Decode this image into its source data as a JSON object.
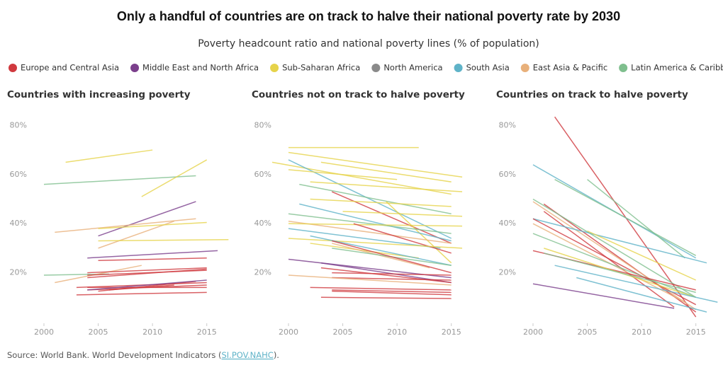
{
  "title": "Only a handful of countries are on track to halve their national poverty rate by 2030",
  "subtitle": "Poverty headcount ratio and national poverty lines (% of population)",
  "legend": [
    {
      "name": "Europe and Central Asia",
      "color": "#d0393e"
    },
    {
      "name": "Middle East and North Africa",
      "color": "#7b3f8c"
    },
    {
      "name": "Sub-Saharan Africa",
      "color": "#e6d34a"
    },
    {
      "name": "North America",
      "color": "#8a8a8a"
    },
    {
      "name": "South Asia",
      "color": "#5fb3c8"
    },
    {
      "name": "East Asia & Pacific",
      "color": "#e8b07a"
    },
    {
      "name": "Latin America & Caribbean",
      "color": "#7fbf8e"
    }
  ],
  "source": {
    "text": "Source: World Bank. World Development Indicators (",
    "link": "SI.POV.NAHC",
    "end": ")."
  },
  "chart_data": [
    {
      "type": "line",
      "title": "Countries with increasing poverty",
      "xlim": [
        1998.5,
        2017.5
      ],
      "ylim": [
        0,
        85
      ],
      "xticks": [
        2000,
        2005,
        2010,
        2015
      ],
      "yticks": [
        {
          "value": 20,
          "label": "20%"
        },
        {
          "value": 40,
          "label": "40%"
        },
        {
          "value": 60,
          "label": "60%"
        },
        {
          "value": 80,
          "label": "80%"
        }
      ],
      "grid": false,
      "series": [
        {
          "color": "#e6d34a",
          "x": [
            2002,
            2010
          ],
          "values": [
            65,
            70
          ]
        },
        {
          "color": "#7fbf8e",
          "x": [
            2000,
            2014
          ],
          "values": [
            56,
            59.5
          ]
        },
        {
          "color": "#e6d34a",
          "x": [
            2009,
            2015
          ],
          "values": [
            51,
            66
          ]
        },
        {
          "color": "#7b3f8c",
          "x": [
            2005,
            2014
          ],
          "values": [
            35,
            49
          ]
        },
        {
          "color": "#e8b07a",
          "x": [
            2001,
            2014
          ],
          "values": [
            36.5,
            42
          ]
        },
        {
          "color": "#e8b07a",
          "x": [
            2005,
            2012
          ],
          "values": [
            30,
            41
          ]
        },
        {
          "color": "#e6d34a",
          "x": [
            2005,
            2015
          ],
          "values": [
            38,
            40.5
          ]
        },
        {
          "color": "#e6d34a",
          "x": [
            2005,
            2017
          ],
          "values": [
            33,
            33.5
          ]
        },
        {
          "color": "#7b3f8c",
          "x": [
            2004,
            2016
          ],
          "values": [
            26,
            29
          ]
        },
        {
          "color": "#7fbf8e",
          "x": [
            2000,
            2006
          ],
          "values": [
            19,
            19.5
          ]
        },
        {
          "color": "#e8b07a",
          "x": [
            2001,
            2009
          ],
          "values": [
            16,
            23
          ]
        },
        {
          "color": "#d0393e",
          "x": [
            2005,
            2015
          ],
          "values": [
            25,
            26
          ]
        },
        {
          "color": "#d0393e",
          "x": [
            2004,
            2015
          ],
          "values": [
            20,
            22
          ]
        },
        {
          "color": "#d0393e",
          "x": [
            2004,
            2015
          ],
          "values": [
            19,
            21
          ]
        },
        {
          "color": "#d0393e",
          "x": [
            2004,
            2015
          ],
          "values": [
            18,
            21.5
          ]
        },
        {
          "color": "#d0393e",
          "x": [
            2003,
            2015
          ],
          "values": [
            14,
            16
          ]
        },
        {
          "color": "#d0393e",
          "x": [
            2004,
            2015
          ],
          "values": [
            13,
            15
          ]
        },
        {
          "color": "#d0393e",
          "x": [
            2005,
            2014
          ],
          "values": [
            12.5,
            16.5
          ]
        },
        {
          "color": "#d0393e",
          "x": [
            2003,
            2015
          ],
          "values": [
            11,
            12
          ]
        },
        {
          "color": "#d0393e",
          "x": [
            2004,
            2015
          ],
          "values": [
            14,
            14
          ]
        },
        {
          "color": "#d0393e",
          "x": [
            2006,
            2012
          ],
          "values": [
            13,
            15
          ]
        },
        {
          "color": "#7b3f8c",
          "x": [
            2004,
            2015
          ],
          "values": [
            13,
            17
          ]
        }
      ]
    },
    {
      "type": "line",
      "title": "Countries not on track to halve poverty",
      "xlim": [
        1998.5,
        2017.5
      ],
      "ylim": [
        0,
        85
      ],
      "xticks": [
        2000,
        2005,
        2010,
        2015
      ],
      "yticks": [
        {
          "value": 20,
          "label": "20%"
        },
        {
          "value": 40,
          "label": "40%"
        },
        {
          "value": 60,
          "label": "60%"
        },
        {
          "value": 80,
          "label": "80%"
        }
      ],
      "grid": false,
      "series": [
        {
          "color": "#e6d34a",
          "x": [
            2000,
            2012
          ],
          "values": [
            71,
            71
          ]
        },
        {
          "color": "#e6d34a",
          "x": [
            2000,
            2016
          ],
          "values": [
            69,
            59
          ]
        },
        {
          "color": "#e6d34a",
          "x": [
            1998.5,
            2015
          ],
          "values": [
            65,
            52
          ]
        },
        {
          "color": "#5fb3c8",
          "x": [
            2000,
            2015
          ],
          "values": [
            66,
            34
          ]
        },
        {
          "color": "#e6d34a",
          "x": [
            2003,
            2015
          ],
          "values": [
            65,
            57
          ]
        },
        {
          "color": "#e6d34a",
          "x": [
            2000,
            2010
          ],
          "values": [
            62,
            58
          ]
        },
        {
          "color": "#7fbf8e",
          "x": [
            2001,
            2015
          ],
          "values": [
            56,
            44
          ]
        },
        {
          "color": "#d0393e",
          "x": [
            2004,
            2015
          ],
          "values": [
            53,
            32
          ]
        },
        {
          "color": "#e6d34a",
          "x": [
            2002,
            2016
          ],
          "values": [
            57,
            53
          ]
        },
        {
          "color": "#e6d34a",
          "x": [
            2002,
            2015
          ],
          "values": [
            50,
            47
          ]
        },
        {
          "color": "#e6d34a",
          "x": [
            2009,
            2015
          ],
          "values": [
            49,
            24
          ]
        },
        {
          "color": "#5fb3c8",
          "x": [
            2001,
            2015
          ],
          "values": [
            48,
            33
          ]
        },
        {
          "color": "#e6d34a",
          "x": [
            2005,
            2016
          ],
          "values": [
            45,
            43
          ]
        },
        {
          "color": "#7fbf8e",
          "x": [
            2000,
            2015
          ],
          "values": [
            44,
            36
          ]
        },
        {
          "color": "#e8b07a",
          "x": [
            2000,
            2015
          ],
          "values": [
            41,
            32
          ]
        },
        {
          "color": "#e6d34a",
          "x": [
            2000,
            2016
          ],
          "values": [
            40,
            39
          ]
        },
        {
          "color": "#5fb3c8",
          "x": [
            2000,
            2014
          ],
          "values": [
            38,
            30
          ]
        },
        {
          "color": "#d0393e",
          "x": [
            2006,
            2015
          ],
          "values": [
            40,
            28
          ]
        },
        {
          "color": "#e6d34a",
          "x": [
            2000,
            2016
          ],
          "values": [
            34,
            30
          ]
        },
        {
          "color": "#e6d34a",
          "x": [
            2002,
            2012
          ],
          "values": [
            32,
            26
          ]
        },
        {
          "color": "#e8b07a",
          "x": [
            2004,
            2013
          ],
          "values": [
            32,
            22
          ]
        },
        {
          "color": "#5fb3c8",
          "x": [
            2002,
            2015
          ],
          "values": [
            35,
            23
          ]
        },
        {
          "color": "#7fbf8e",
          "x": [
            2004,
            2015
          ],
          "values": [
            30,
            23
          ]
        },
        {
          "color": "#d0393e",
          "x": [
            2004,
            2015
          ],
          "values": [
            33,
            20
          ]
        },
        {
          "color": "#7b3f8c",
          "x": [
            2000,
            2015
          ],
          "values": [
            25.5,
            18
          ]
        },
        {
          "color": "#7b3f8c",
          "x": [
            2003,
            2015
          ],
          "values": [
            24,
            16
          ]
        },
        {
          "color": "#d0393e",
          "x": [
            2004,
            2015
          ],
          "values": [
            20,
            19
          ]
        },
        {
          "color": "#d0393e",
          "x": [
            2003,
            2015
          ],
          "values": [
            22,
            16
          ]
        },
        {
          "color": "#d0393e",
          "x": [
            2004,
            2015
          ],
          "values": [
            18,
            17
          ]
        },
        {
          "color": "#e8b07a",
          "x": [
            2000,
            2015
          ],
          "values": [
            19,
            15
          ]
        },
        {
          "color": "#d0393e",
          "x": [
            2004,
            2015
          ],
          "values": [
            13,
            12
          ]
        },
        {
          "color": "#d0393e",
          "x": [
            2003,
            2015
          ],
          "values": [
            10,
            9.5
          ]
        },
        {
          "color": "#d0393e",
          "x": [
            2004,
            2015
          ],
          "values": [
            12.5,
            11
          ]
        },
        {
          "color": "#d0393e",
          "x": [
            2002,
            2015
          ],
          "values": [
            14,
            13
          ]
        }
      ]
    },
    {
      "type": "line",
      "title": "Countries on track to halve poverty",
      "xlim": [
        1998.5,
        2017.5
      ],
      "ylim": [
        0,
        85
      ],
      "xticks": [
        2000,
        2005,
        2010,
        2015
      ],
      "yticks": [
        {
          "value": 20,
          "label": "20%"
        },
        {
          "value": 40,
          "label": "40%"
        },
        {
          "value": 60,
          "label": "60%"
        },
        {
          "value": 80,
          "label": "80%"
        }
      ],
      "grid": false,
      "series": [
        {
          "color": "#d0393e",
          "x": [
            2002,
            2015
          ],
          "values": [
            83.5,
            2
          ]
        },
        {
          "color": "#5fb3c8",
          "x": [
            2000,
            2015
          ],
          "values": [
            64,
            26
          ]
        },
        {
          "color": "#7fbf8e",
          "x": [
            2002,
            2015
          ],
          "values": [
            58,
            27
          ]
        },
        {
          "color": "#7fbf8e",
          "x": [
            2005,
            2014
          ],
          "values": [
            58,
            26
          ]
        },
        {
          "color": "#d0393e",
          "x": [
            2001,
            2015
          ],
          "values": [
            48,
            4
          ]
        },
        {
          "color": "#e8b07a",
          "x": [
            2000,
            2015
          ],
          "values": [
            49,
            5
          ]
        },
        {
          "color": "#7fbf8e",
          "x": [
            2000,
            2015
          ],
          "values": [
            50,
            10
          ]
        },
        {
          "color": "#d0393e",
          "x": [
            2001,
            2013
          ],
          "values": [
            45,
            6
          ]
        },
        {
          "color": "#5fb3c8",
          "x": [
            2000,
            2016
          ],
          "values": [
            42,
            24
          ]
        },
        {
          "color": "#d0393e",
          "x": [
            2000,
            2015
          ],
          "values": [
            42,
            7
          ]
        },
        {
          "color": "#e8b07a",
          "x": [
            2000,
            2014
          ],
          "values": [
            40,
            8
          ]
        },
        {
          "color": "#e6d34a",
          "x": [
            2005,
            2015
          ],
          "values": [
            37,
            17
          ]
        },
        {
          "color": "#7fbf8e",
          "x": [
            2000,
            2015
          ],
          "values": [
            36,
            10
          ]
        },
        {
          "color": "#d0393e",
          "x": [
            2000,
            2015
          ],
          "values": [
            29,
            13
          ]
        },
        {
          "color": "#e6d34a",
          "x": [
            2001,
            2015
          ],
          "values": [
            30,
            10
          ]
        },
        {
          "color": "#5fb3c8",
          "x": [
            2002,
            2017
          ],
          "values": [
            23,
            8
          ]
        },
        {
          "color": "#7b3f8c",
          "x": [
            2000,
            2013
          ],
          "values": [
            15.5,
            5.5
          ]
        },
        {
          "color": "#5fb3c8",
          "x": [
            2004,
            2016
          ],
          "values": [
            18,
            4
          ]
        },
        {
          "color": "#7fbf8e",
          "x": [
            2001,
            2015
          ],
          "values": [
            28,
            12
          ]
        }
      ]
    }
  ]
}
